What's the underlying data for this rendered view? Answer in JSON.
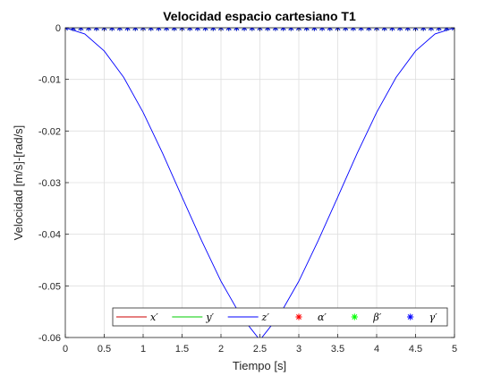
{
  "chart_data": {
    "type": "line",
    "title": "Velocidad espacio cartesiano T1",
    "xlabel": "Tiempo [s]",
    "ylabel": "Velocidad [m/s]-[rad/s]",
    "xlim": [
      0,
      5
    ],
    "ylim": [
      -0.06,
      0
    ],
    "xticks": [
      "0",
      "0.5",
      "1",
      "1.5",
      "2",
      "2.5",
      "3",
      "3.5",
      "4",
      "4.5",
      "5"
    ],
    "yticks": [
      "0",
      "-0.01",
      "-0.02",
      "-0.03",
      "-0.04",
      "-0.05",
      "-0.06"
    ],
    "grid": true,
    "legend_position": "bottom",
    "series": [
      {
        "name": "x′",
        "color": "#cc0000",
        "style": "line",
        "x": [
          0,
          5
        ],
        "y": [
          0,
          0
        ]
      },
      {
        "name": "y′",
        "color": "#00cc00",
        "style": "line",
        "x": [
          0,
          5
        ],
        "y": [
          0,
          0
        ]
      },
      {
        "name": "z′",
        "color": "#0000ff",
        "style": "line",
        "x": [
          0,
          0.25,
          0.5,
          0.75,
          1,
          1.25,
          1.5,
          1.75,
          2,
          2.25,
          2.5,
          2.75,
          3,
          3.25,
          3.5,
          3.75,
          4,
          4.25,
          4.5,
          4.75,
          5
        ],
        "y": [
          0,
          -0.0012,
          -0.0045,
          -0.0096,
          -0.0164,
          -0.0243,
          -0.0328,
          -0.0412,
          -0.0491,
          -0.0557,
          -0.0605,
          -0.0557,
          -0.0491,
          -0.0412,
          -0.0328,
          -0.0243,
          -0.0164,
          -0.0096,
          -0.0045,
          -0.0012,
          0
        ]
      },
      {
        "name": "α′",
        "color": "#ff0000",
        "style": "marker",
        "x": [
          0,
          5
        ],
        "y": [
          0,
          0
        ]
      },
      {
        "name": "β′",
        "color": "#00ff00",
        "style": "marker",
        "x": [
          0,
          5
        ],
        "y": [
          0,
          0
        ]
      },
      {
        "name": "γ′",
        "color": "#0000ff",
        "style": "marker",
        "x": [
          0,
          5
        ],
        "y": [
          0,
          0
        ]
      }
    ],
    "marker_samples": 51
  }
}
